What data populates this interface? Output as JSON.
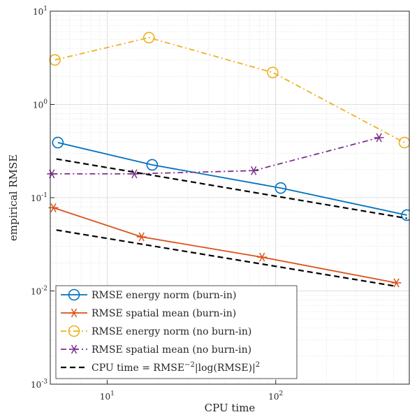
{
  "chart_data": {
    "type": "line",
    "title": "",
    "xlabel": "CPU time",
    "ylabel": "empirical RMSE",
    "x_scale": "log",
    "y_scale": "log",
    "xlim": [
      4.6,
      620
    ],
    "ylim": [
      0.001,
      10
    ],
    "grid": true,
    "legend_position": "bottom-left",
    "x_ticks": [
      {
        "value": 10,
        "mantissa": "10",
        "exponent": "1"
      },
      {
        "value": 100,
        "mantissa": "10",
        "exponent": "2"
      }
    ],
    "y_ticks": [
      {
        "value": 10,
        "mantissa": "10",
        "exponent": "1"
      },
      {
        "value": 1,
        "mantissa": "10",
        "exponent": "0"
      },
      {
        "value": 0.1,
        "mantissa": "10",
        "exponent": "-1"
      },
      {
        "value": 0.01,
        "mantissa": "10",
        "exponent": "-2"
      },
      {
        "value": 0.001,
        "mantissa": "10",
        "exponent": "-3"
      }
    ],
    "series": [
      {
        "name": "RMSE energy norm (burn-in)",
        "color": "#0072BD",
        "line": "solid",
        "marker": "circle",
        "x": [
          5.1,
          18.5,
          107,
          600
        ],
        "y": [
          0.39,
          0.225,
          0.127,
          0.065
        ]
      },
      {
        "name": "RMSE spatial mean (burn-in)",
        "color": "#D95319",
        "line": "solid",
        "marker": "star",
        "x": [
          4.8,
          16,
          83,
          520
        ],
        "y": [
          0.078,
          0.038,
          0.023,
          0.0122
        ]
      },
      {
        "name": "RMSE energy norm (no burn-in)",
        "color": "#EDB120",
        "line": "dashdot",
        "marker": "circle",
        "x": [
          4.9,
          17.7,
          96,
          580
        ],
        "y": [
          3.0,
          5.2,
          2.2,
          0.39
        ]
      },
      {
        "name": "RMSE spatial mean (no burn-in)",
        "color": "#7E2F8E",
        "line": "dashdot",
        "marker": "star",
        "x": [
          4.7,
          14.5,
          74,
          410
        ],
        "y": [
          0.18,
          0.18,
          0.195,
          0.44
        ]
      },
      {
        "name": "CPU time = RMSE",
        "color": "#000000",
        "line": "dashed",
        "marker": "none",
        "segments": [
          {
            "x": [
              5,
              600
            ],
            "y": [
              0.26,
              0.06
            ]
          },
          {
            "x": [
              5,
              520
            ],
            "y": [
              0.045,
              0.0112
            ]
          }
        ]
      }
    ],
    "legend_formula": {
      "prefix": "CPU time = RMSE",
      "superscript": "−2",
      "suffix": "|log(RMSE)|",
      "suffix_superscript": "2"
    }
  }
}
